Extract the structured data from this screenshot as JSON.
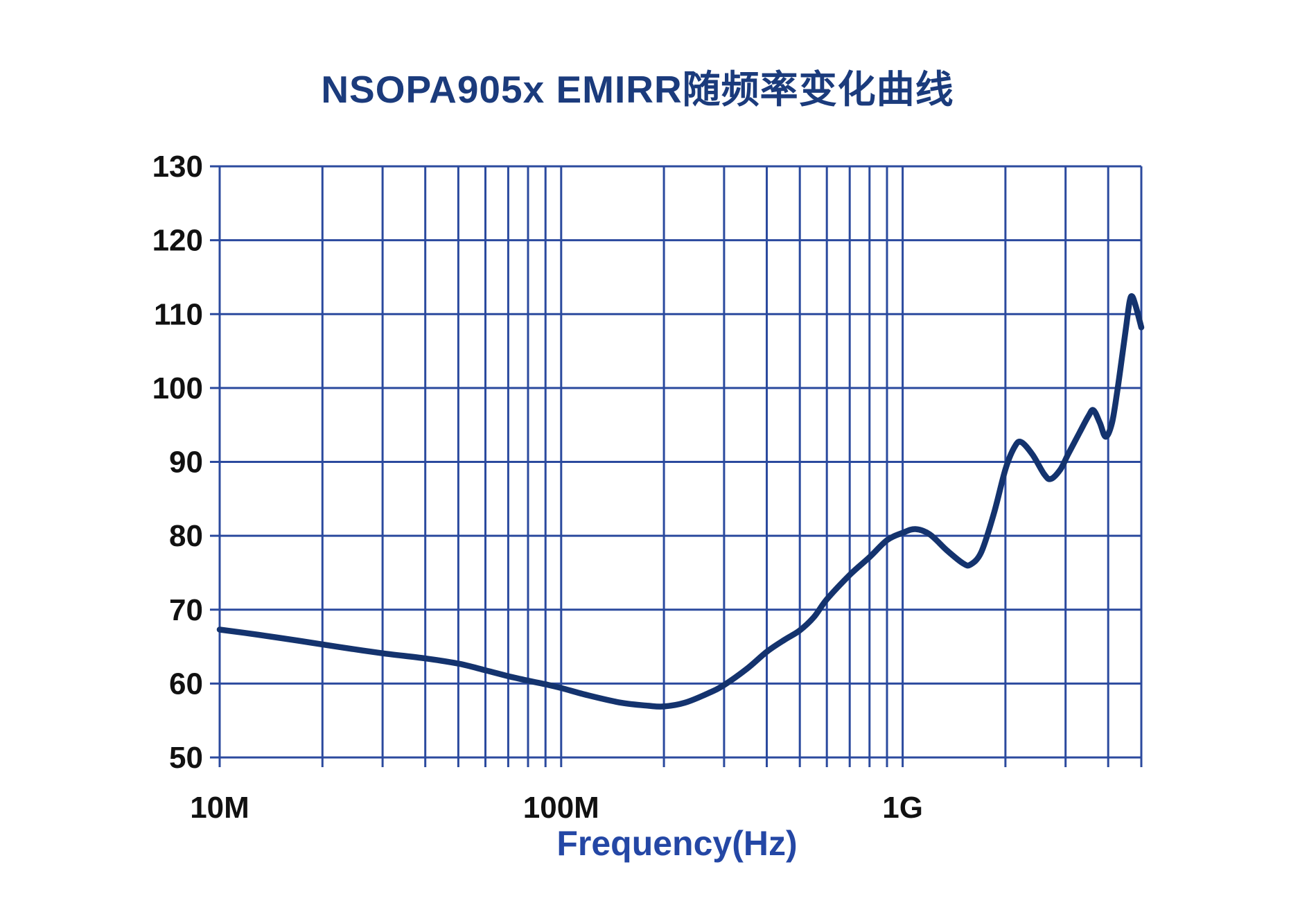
{
  "title": "NSOPA905x EMIRR随频率变化曲线",
  "colors": {
    "title": "#1B3B7C",
    "grid": "#2B4A9E",
    "curve": "#14336E",
    "tick_label": "#111111",
    "xlabel": "#2447A5",
    "background": "#ffffff"
  },
  "chart_data": {
    "type": "line",
    "title": "NSOPA905x EMIRR随频率变化曲线",
    "xlabel": "Frequency(Hz)",
    "ylabel": "",
    "x_scale": "log",
    "x_range": [
      10000000.0,
      5000000000.0
    ],
    "ylim": [
      50,
      130
    ],
    "grid": "major horizontal every 10; log minor vertical (2-9 per decade)",
    "legend": "none",
    "y_ticks": [
      130,
      120,
      110,
      100,
      90,
      80,
      70,
      60,
      50
    ],
    "x_ticks": [
      {
        "label": "10M",
        "value": 10000000.0
      },
      {
        "label": "100M",
        "value": 100000000.0
      },
      {
        "label": "1G",
        "value": 1000000000.0
      }
    ],
    "series": [
      {
        "name": "EMIRR",
        "points": [
          [
            10000000.0,
            67.3
          ],
          [
            13000000.0,
            66.6
          ],
          [
            17000000.0,
            65.8
          ],
          [
            22000000.0,
            65.0
          ],
          [
            30000000.0,
            64.1
          ],
          [
            40000000.0,
            63.4
          ],
          [
            50000000.0,
            62.7
          ],
          [
            60000000.0,
            61.8
          ],
          [
            70000000.0,
            61.0
          ],
          [
            80000000.0,
            60.4
          ],
          [
            90000000.0,
            59.9
          ],
          [
            100000000.0,
            59.4
          ],
          [
            120000000.0,
            58.4
          ],
          [
            150000000.0,
            57.4
          ],
          [
            180000000.0,
            57.0
          ],
          [
            200000000.0,
            56.9
          ],
          [
            230000000.0,
            57.4
          ],
          [
            270000000.0,
            58.7
          ],
          [
            300000000.0,
            59.8
          ],
          [
            350000000.0,
            62.0
          ],
          [
            400000000.0,
            64.3
          ],
          [
            450000000.0,
            65.9
          ],
          [
            500000000.0,
            67.2
          ],
          [
            550000000.0,
            69.0
          ],
          [
            600000000.0,
            71.4
          ],
          [
            700000000.0,
            74.7
          ],
          [
            800000000.0,
            77.1
          ],
          [
            900000000.0,
            79.4
          ],
          [
            1000000000.0,
            80.4
          ],
          [
            1090000000.0,
            80.9
          ],
          [
            1200000000.0,
            80.2
          ],
          [
            1350000000.0,
            78.0
          ],
          [
            1500000000.0,
            76.3
          ],
          [
            1580000000.0,
            76.1
          ],
          [
            1700000000.0,
            77.8
          ],
          [
            1850000000.0,
            83.0
          ],
          [
            2000000000.0,
            89.0
          ],
          [
            2120000000.0,
            91.9
          ],
          [
            2220000000.0,
            92.7
          ],
          [
            2400000000.0,
            91.0
          ],
          [
            2600000000.0,
            88.3
          ],
          [
            2720000000.0,
            87.7
          ],
          [
            2900000000.0,
            89.0
          ],
          [
            3050000000.0,
            91.0
          ],
          [
            3300000000.0,
            94.0
          ],
          [
            3500000000.0,
            96.2
          ],
          [
            3620000000.0,
            97.0
          ],
          [
            3780000000.0,
            95.3
          ],
          [
            3930000000.0,
            93.4
          ],
          [
            4100000000.0,
            95.2
          ],
          [
            4250000000.0,
            99.5
          ],
          [
            4400000000.0,
            104.5
          ],
          [
            4520000000.0,
            108.5
          ],
          [
            4620000000.0,
            111.7
          ],
          [
            4700000000.0,
            112.4
          ],
          [
            4820000000.0,
            111.0
          ],
          [
            5000000000.0,
            108.2
          ]
        ]
      }
    ]
  }
}
